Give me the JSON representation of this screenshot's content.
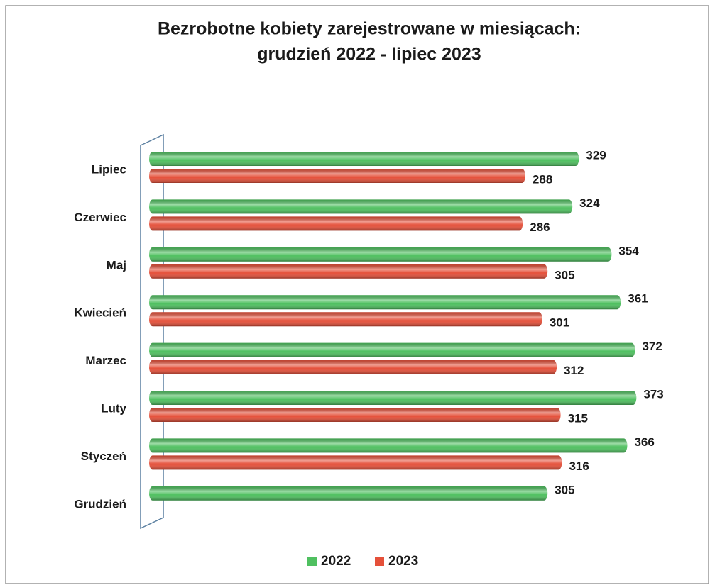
{
  "chart_data": {
    "type": "bar",
    "orientation": "horizontal",
    "title": "Bezrobotne kobiety zarejestrowane w miesiącach:",
    "subtitle": "grudzień 2022 - lipiec 2023",
    "categories": [
      "Lipiec",
      "Czerwiec",
      "Maj",
      "Kwiecień",
      "Marzec",
      "Luty",
      "Styczeń",
      "Grudzień"
    ],
    "series": [
      {
        "name": "2022",
        "color": "#4fc060",
        "values": [
          329,
          324,
          354,
          361,
          372,
          373,
          366,
          305
        ]
      },
      {
        "name": "2023",
        "color": "#e5503a",
        "values": [
          288,
          286,
          305,
          301,
          312,
          315,
          316,
          null
        ]
      }
    ],
    "xlim": [
      0,
      400
    ],
    "legend": "bottom"
  }
}
